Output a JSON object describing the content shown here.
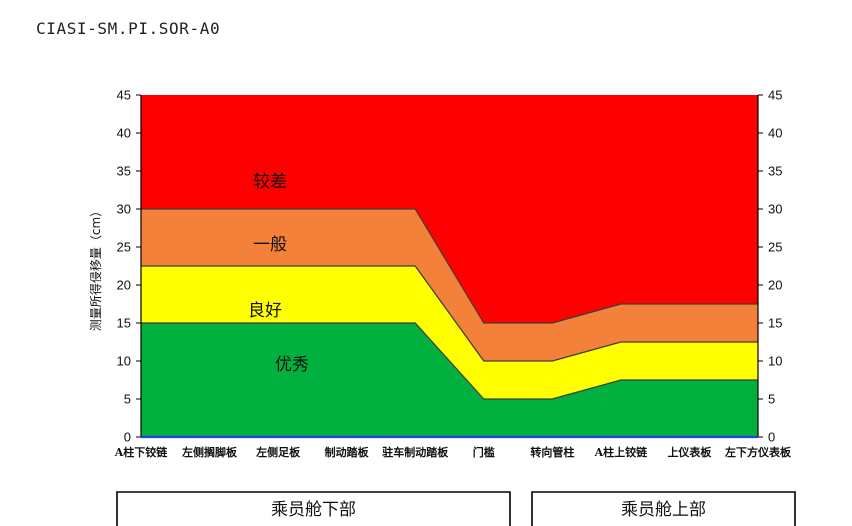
{
  "chart_data": {
    "type": "area",
    "title": "CIASI-SM.PI.SOR-A0",
    "ylabel": "测量所得侵移量（cm）",
    "ylim": [
      0,
      45
    ],
    "yticks": [
      0,
      5,
      10,
      15,
      20,
      25,
      30,
      35,
      40,
      45
    ],
    "right_axis": true,
    "show_grid": false,
    "show_legend": false,
    "categories": [
      "A柱下铰链",
      "左侧搁脚板",
      "左侧足板",
      "制动踏板",
      "驻车制动踏板",
      "门槛",
      "转向管柱",
      "A柱上铰链",
      "上仪表板",
      "左下方仪表板"
    ],
    "series": [
      {
        "name": "优秀",
        "values": [
          15,
          15,
          15,
          15,
          15,
          5,
          5,
          7.5,
          7.5,
          7.5
        ],
        "color": "#00b140"
      },
      {
        "name": "良好",
        "values": [
          22.5,
          22.5,
          22.5,
          22.5,
          22.5,
          10,
          10,
          12.5,
          12.5,
          12.5
        ],
        "color": "#ffff00"
      },
      {
        "name": "一般",
        "values": [
          30,
          30,
          30,
          30,
          30,
          15,
          15,
          17.5,
          17.5,
          17.5
        ],
        "color": "#f4813a"
      },
      {
        "name": "较差",
        "values": [
          45,
          45,
          45,
          45,
          45,
          45,
          45,
          45,
          45,
          45
        ],
        "color": "#ff0000"
      }
    ],
    "groups": [
      {
        "label": "乘员舱下部",
        "from": 0,
        "to": 5
      },
      {
        "label": "乘员舱上部",
        "from": 6,
        "to": 9
      }
    ],
    "axis_color": "#000000",
    "baseline_color": "#1f3ff0",
    "boundary_color": "#3c3c3c"
  }
}
